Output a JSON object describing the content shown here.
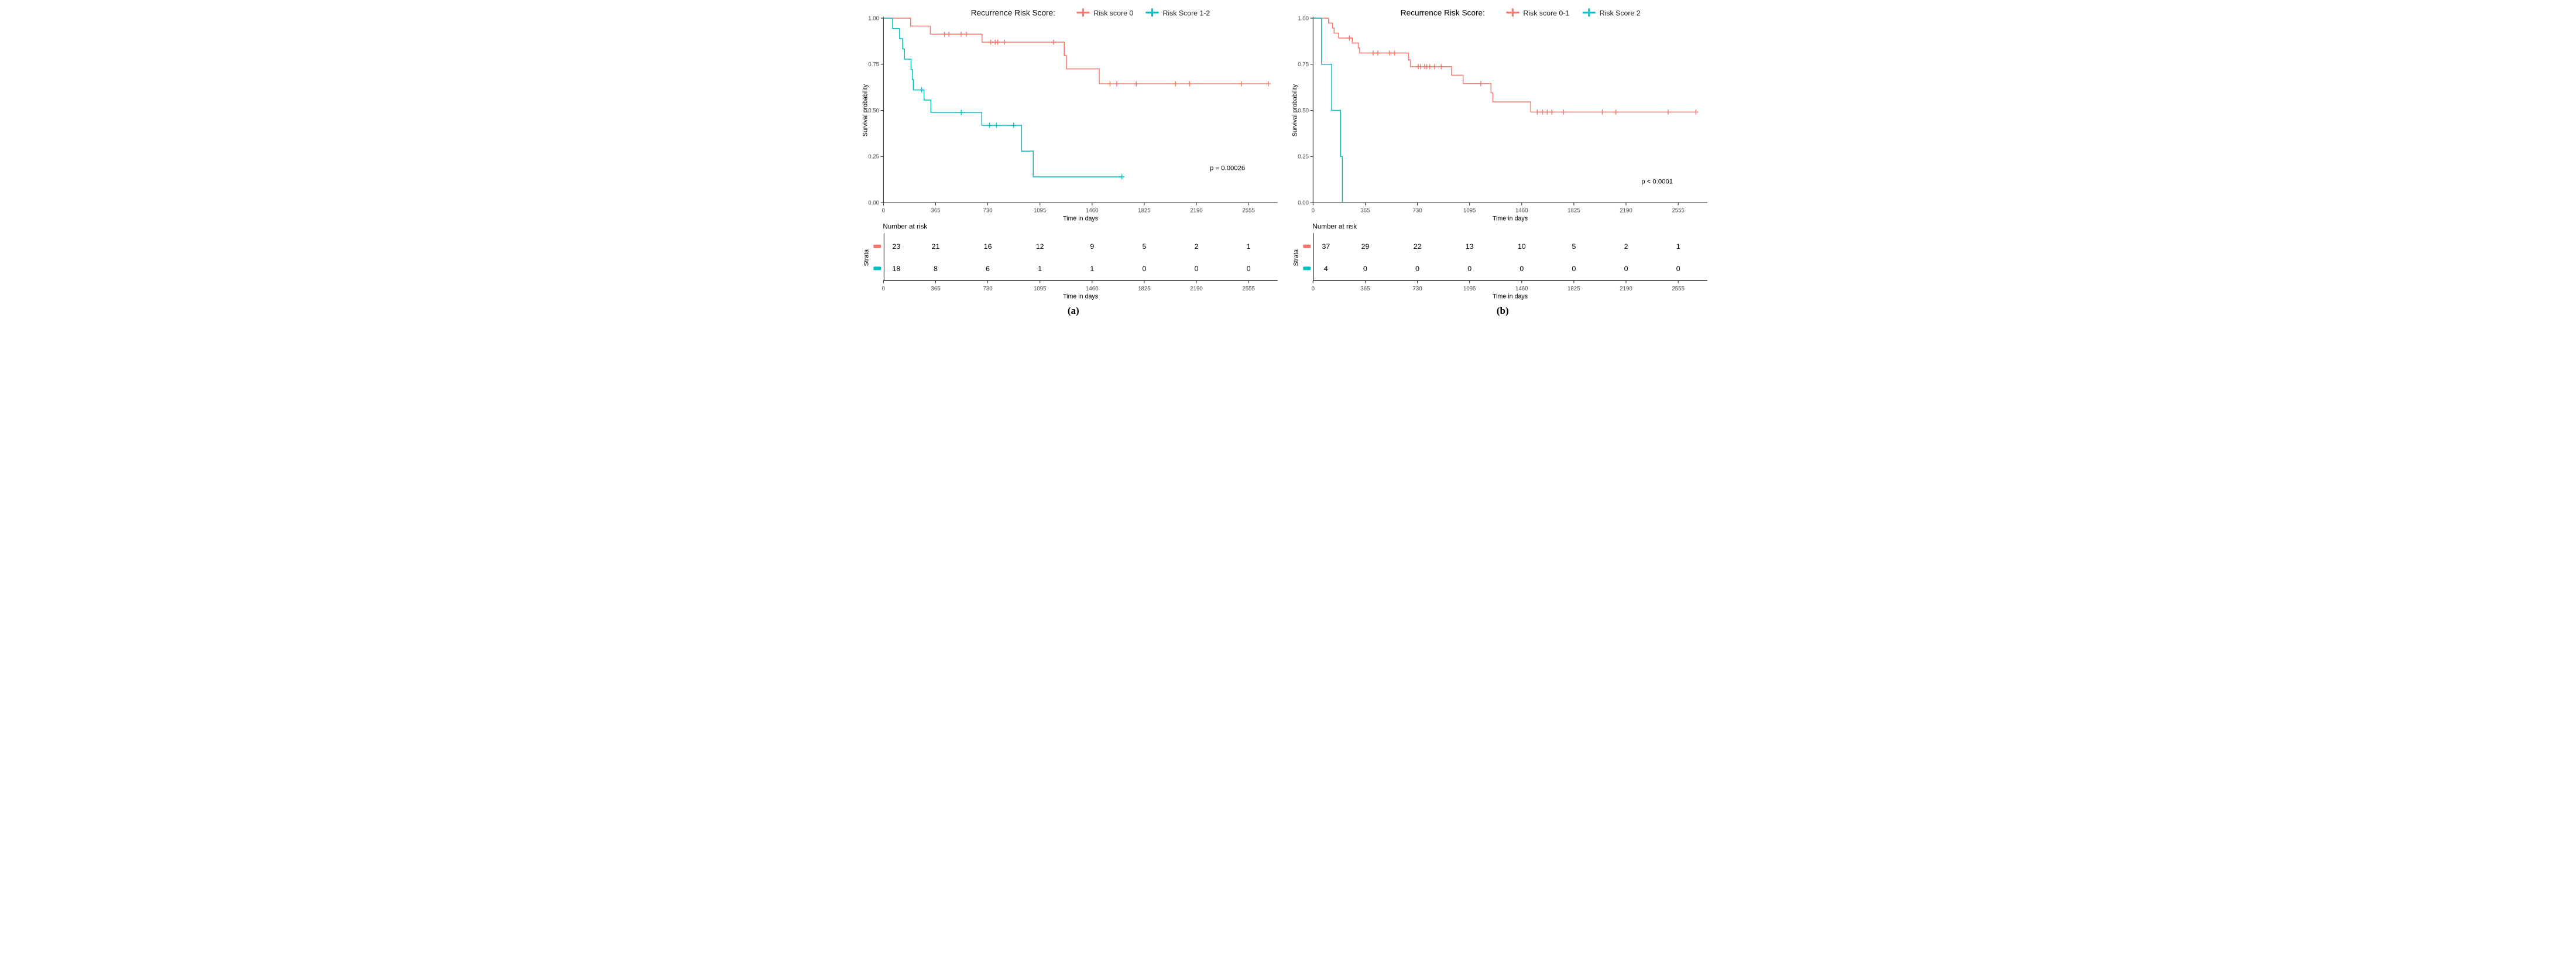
{
  "colors": {
    "stratum_low": "#F8766D",
    "stratum_high": "#00BFC4",
    "axis_line": "#1a1a1a",
    "tick_label": "#4d4d4d",
    "text": "#000000"
  },
  "chart_data": [
    {
      "type": "line",
      "subtype": "kaplan-meier-step",
      "caption": "(a)",
      "legend_title": "Recurrence Risk Score:",
      "p_value": "p = 0.00026",
      "xlabel": "Time in days",
      "ylabel": "Survival probability",
      "legend_position": "top",
      "grid": false,
      "xlim": [
        0,
        2760
      ],
      "ylim": [
        0,
        1
      ],
      "xticks": [
        0,
        365,
        730,
        1095,
        1460,
        1825,
        2190,
        2555
      ],
      "ytick_labels": [
        "0.00",
        "0.25",
        "0.50",
        "0.75",
        "1.00"
      ],
      "yticks": [
        0,
        0.25,
        0.5,
        0.75,
        1
      ],
      "series": [
        {
          "name": "Risk score 0",
          "color": "#F8766D",
          "steps": [
            [
              0,
              1.0
            ],
            [
              190,
              0.957
            ],
            [
              328,
              0.913
            ],
            [
              690,
              0.87
            ],
            [
              1265,
              0.797
            ],
            [
              1281,
              0.725
            ],
            [
              1510,
              0.644
            ]
          ],
          "end": 2693,
          "censors": [
            [
              427,
              0.913
            ],
            [
              458,
              0.913
            ],
            [
              543,
              0.913
            ],
            [
              580,
              0.913
            ],
            [
              750,
              0.87
            ],
            [
              782,
              0.87
            ],
            [
              800,
              0.87
            ],
            [
              846,
              0.87
            ],
            [
              1190,
              0.87
            ],
            [
              1585,
              0.644
            ],
            [
              1633,
              0.644
            ],
            [
              1769,
              0.644
            ],
            [
              2044,
              0.644
            ],
            [
              2142,
              0.644
            ],
            [
              2504,
              0.644
            ],
            [
              2693,
              0.644
            ]
          ]
        },
        {
          "name": "Risk Score 1-2",
          "color": "#00BFC4",
          "steps": [
            [
              0,
              1.0
            ],
            [
              64,
              0.944
            ],
            [
              113,
              0.889
            ],
            [
              134,
              0.833
            ],
            [
              147,
              0.778
            ],
            [
              193,
              0.722
            ],
            [
              202,
              0.667
            ],
            [
              209,
              0.611
            ],
            [
              284,
              0.556
            ],
            [
              332,
              0.489
            ],
            [
              688,
              0.419
            ],
            [
              966,
              0.279
            ],
            [
              1048,
              0.14
            ]
          ],
          "end": 1668,
          "censors": [
            [
              267,
              0.611
            ],
            [
              545,
              0.489
            ],
            [
              742,
              0.419
            ],
            [
              791,
              0.419
            ],
            [
              911,
              0.419
            ],
            [
              1668,
              0.14
            ]
          ]
        }
      ],
      "risk_table": {
        "title": "Number at risk",
        "ylabel": "Strata",
        "xlabel": "Time in days",
        "times": [
          0,
          365,
          730,
          1095,
          1460,
          1825,
          2190,
          2555
        ],
        "rows": [
          {
            "stratum": "Risk score 0",
            "color": "#F8766D",
            "counts": [
              23,
              21,
              16,
              12,
              9,
              5,
              2,
              1
            ]
          },
          {
            "stratum": "Risk Score 1-2",
            "color": "#00BFC4",
            "counts": [
              18,
              8,
              6,
              1,
              1,
              0,
              0,
              0
            ]
          }
        ]
      }
    },
    {
      "type": "line",
      "subtype": "kaplan-meier-step",
      "caption": "(b)",
      "legend_title": "Recurrence Risk Score:",
      "p_value": "p < 0.0001",
      "xlabel": "Time in days",
      "ylabel": "Survival probability",
      "legend_position": "top",
      "grid": false,
      "xlim": [
        0,
        2760
      ],
      "ylim": [
        0,
        1
      ],
      "xticks": [
        0,
        365,
        730,
        1095,
        1460,
        1825,
        2190,
        2555
      ],
      "ytick_labels": [
        "0.00",
        "0.25",
        "0.50",
        "0.75",
        "1.00"
      ],
      "yticks": [
        0,
        0.25,
        0.5,
        0.75,
        1
      ],
      "series": [
        {
          "name": "Risk score 0-1",
          "color": "#F8766D",
          "steps": [
            [
              0,
              1.0
            ],
            [
              108,
              0.973
            ],
            [
              136,
              0.946
            ],
            [
              147,
              0.919
            ],
            [
              179,
              0.892
            ],
            [
              274,
              0.865
            ],
            [
              316,
              0.838
            ],
            [
              326,
              0.811
            ],
            [
              668,
              0.774
            ],
            [
              681,
              0.737
            ],
            [
              969,
              0.691
            ],
            [
              1050,
              0.645
            ],
            [
              1245,
              0.595
            ],
            [
              1258,
              0.546
            ],
            [
              1523,
              0.491
            ]
          ],
          "end": 2679,
          "censors": [
            [
              254,
              0.892
            ],
            [
              420,
              0.811
            ],
            [
              453,
              0.811
            ],
            [
              535,
              0.811
            ],
            [
              570,
              0.811
            ],
            [
              736,
              0.737
            ],
            [
              752,
              0.737
            ],
            [
              781,
              0.737
            ],
            [
              795,
              0.737
            ],
            [
              816,
              0.737
            ],
            [
              850,
              0.737
            ],
            [
              897,
              0.737
            ],
            [
              1174,
              0.645
            ],
            [
              1569,
              0.491
            ],
            [
              1606,
              0.491
            ],
            [
              1639,
              0.491
            ],
            [
              1671,
              0.491
            ],
            [
              1753,
              0.491
            ],
            [
              2024,
              0.491
            ],
            [
              2119,
              0.491
            ],
            [
              2484,
              0.491
            ],
            [
              2679,
              0.491
            ]
          ]
        },
        {
          "name": "Risk Score 2",
          "color": "#00BFC4",
          "steps": [
            [
              0,
              1.0
            ],
            [
              59,
              0.75
            ],
            [
              130,
              0.5
            ],
            [
              192,
              0.25
            ],
            [
              205,
              0.0
            ]
          ],
          "end": 205,
          "censors": []
        }
      ],
      "risk_table": {
        "title": "Number at risk",
        "ylabel": "Strata",
        "xlabel": "Time in days",
        "times": [
          0,
          365,
          730,
          1095,
          1460,
          1825,
          2190,
          2555
        ],
        "rows": [
          {
            "stratum": "Risk score 0-1",
            "color": "#F8766D",
            "counts": [
              37,
              29,
              22,
              13,
              10,
              5,
              2,
              1
            ]
          },
          {
            "stratum": "Risk Score 2",
            "color": "#00BFC4",
            "counts": [
              4,
              0,
              0,
              0,
              0,
              0,
              0,
              0
            ]
          }
        ]
      }
    }
  ]
}
